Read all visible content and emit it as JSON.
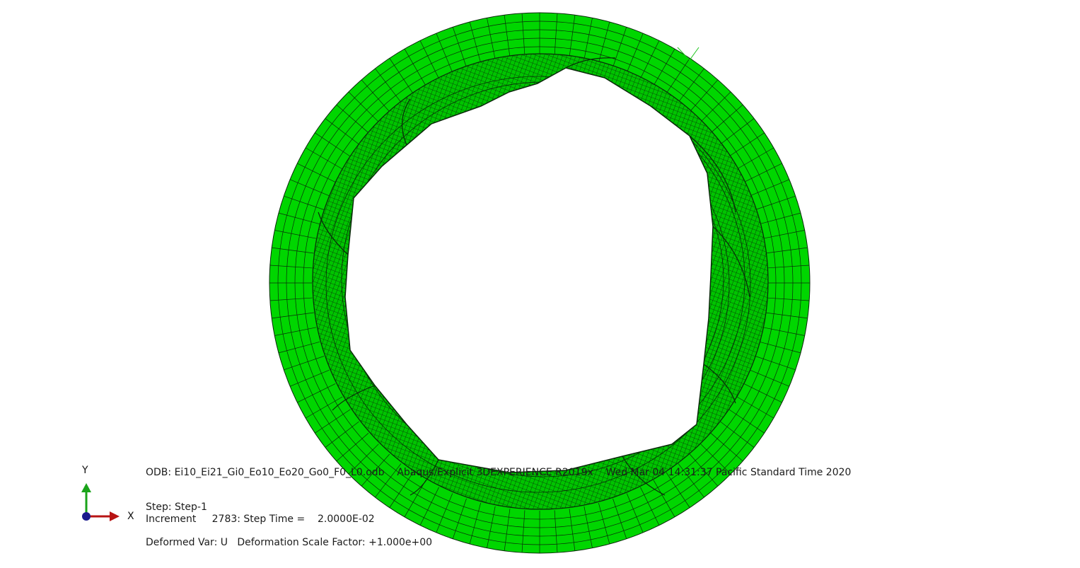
{
  "viewport": {
    "model_color": "#00d600",
    "mesh_color": "#0a2a0a",
    "background": "#ffffff"
  },
  "triad": {
    "y_label": "Y",
    "x_label": "X",
    "y_color": "#1aa31a",
    "x_color": "#b81414",
    "origin_color": "#1a1a8c"
  },
  "info": {
    "odb_line": "ODB: Ei10_Ei21_Gi0_Eo10_Eo20_Go0_F0_L0.odb    Abaqus/Explicit 3DEXPERIENCE R2019x    Wed Mar 04 14:31:37 Pacific Standard Time 2020",
    "step_line": "Step: Step-1",
    "increment_line": "Increment     2783: Step Time =    2.0000E-02",
    "deformed_line": "Deformed Var: U   Deformation Scale Factor: +1.000e+00"
  }
}
